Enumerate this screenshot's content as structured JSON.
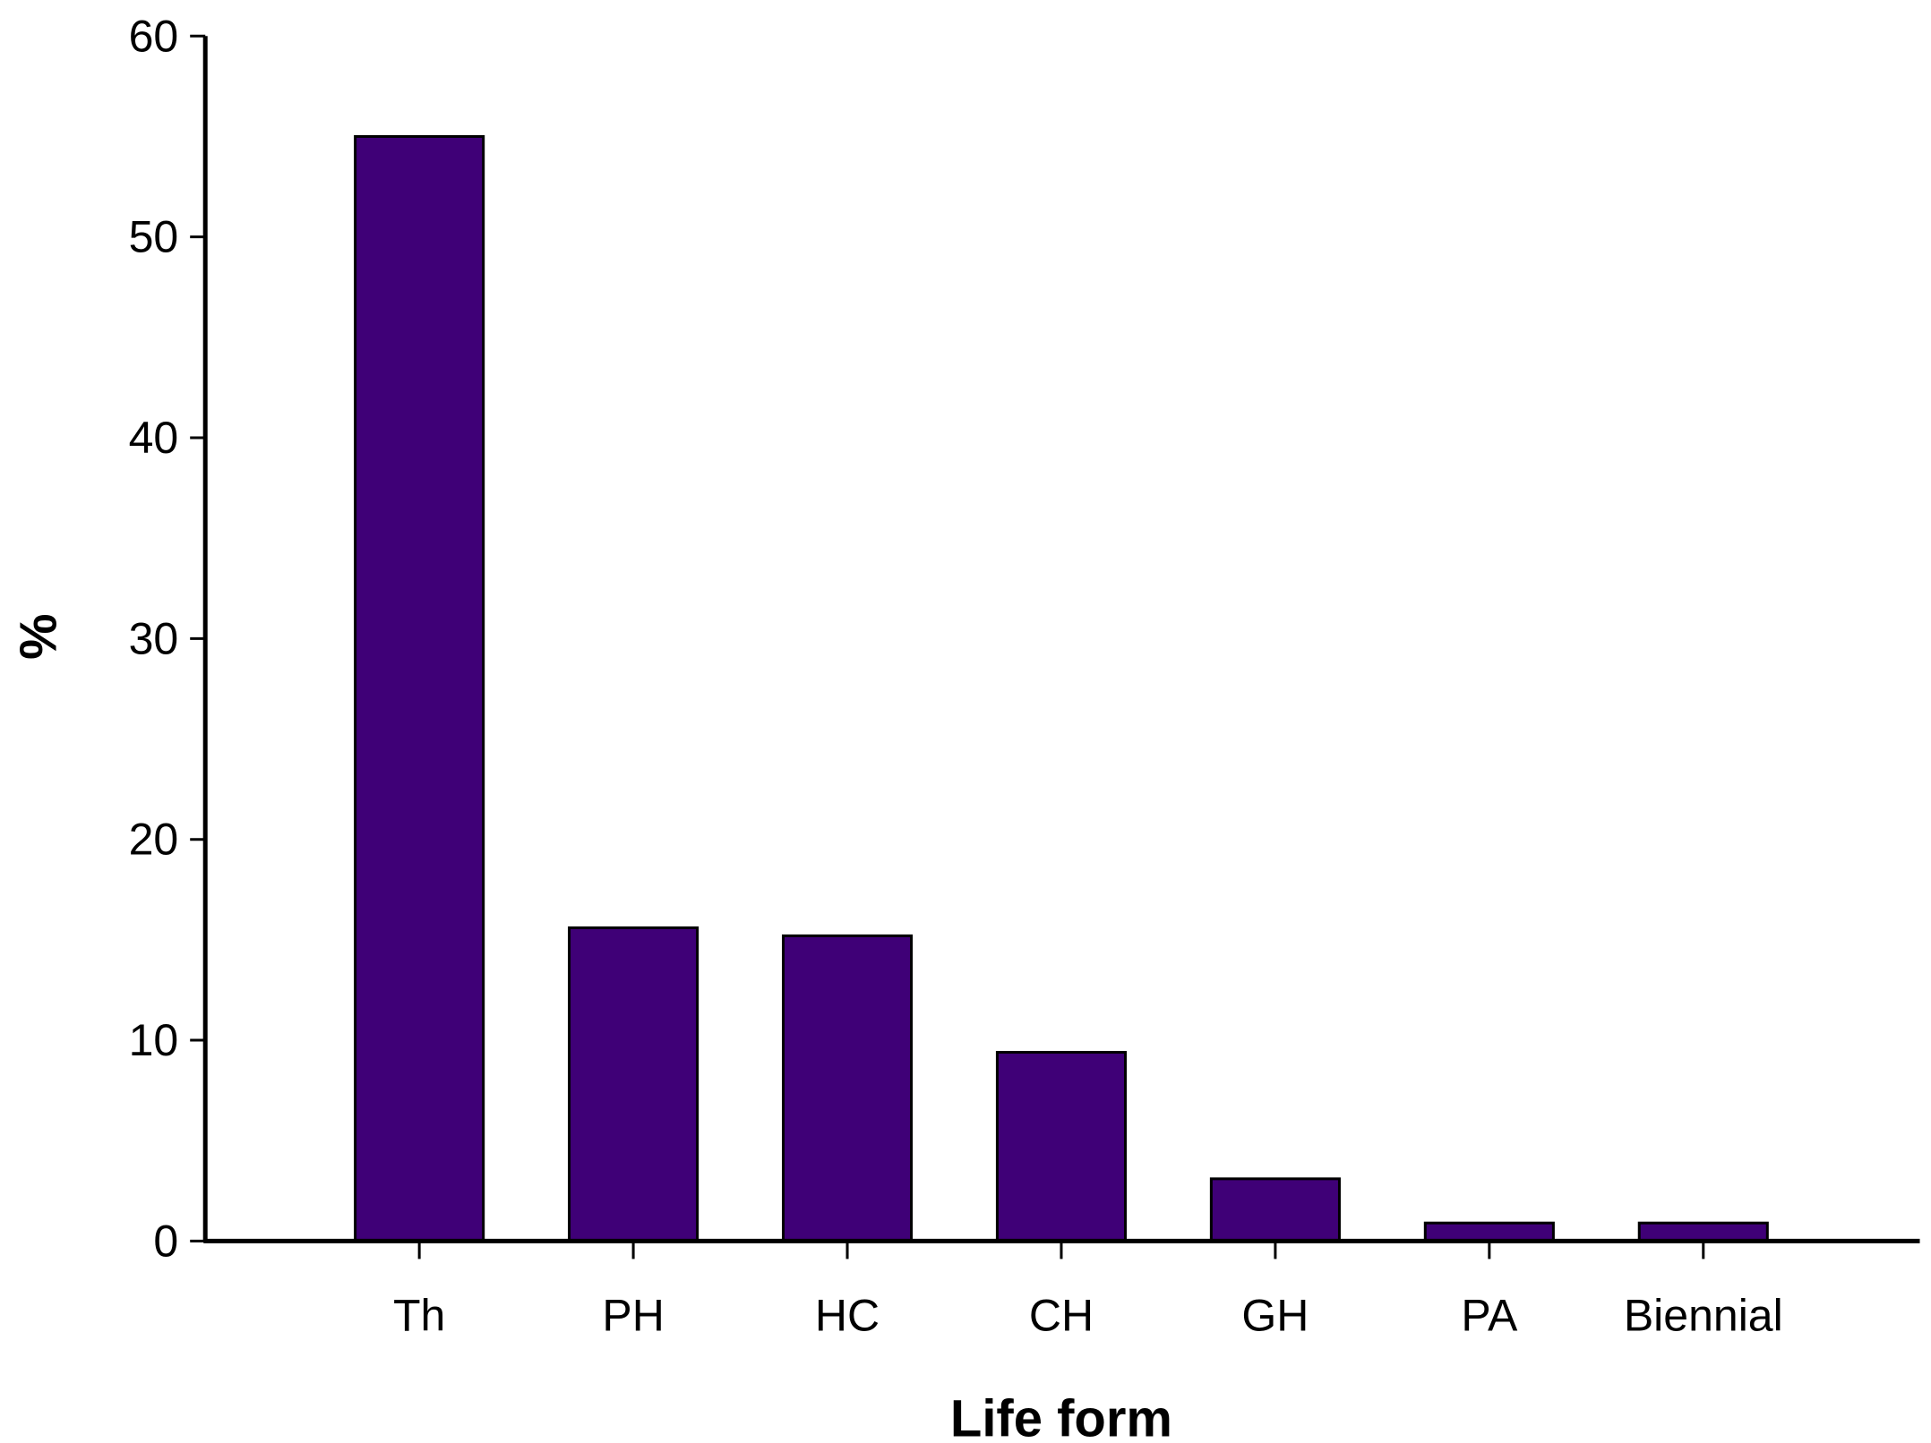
{
  "chart_data": {
    "type": "bar",
    "categories": [
      "Th",
      "PH",
      "HC",
      "CH",
      "GH",
      "PA",
      "Biennial"
    ],
    "values": [
      55.0,
      15.6,
      15.2,
      9.4,
      3.1,
      0.9,
      0.9
    ],
    "xlabel": "Life form",
    "ylabel": "%",
    "ylim": [
      0,
      60
    ],
    "yticks": [
      "0",
      "10",
      "20",
      "30",
      "40",
      "50",
      "60"
    ],
    "grid": false,
    "legend": "none",
    "bar_color": "#3f0077",
    "bar_edge_color": "#000000"
  }
}
